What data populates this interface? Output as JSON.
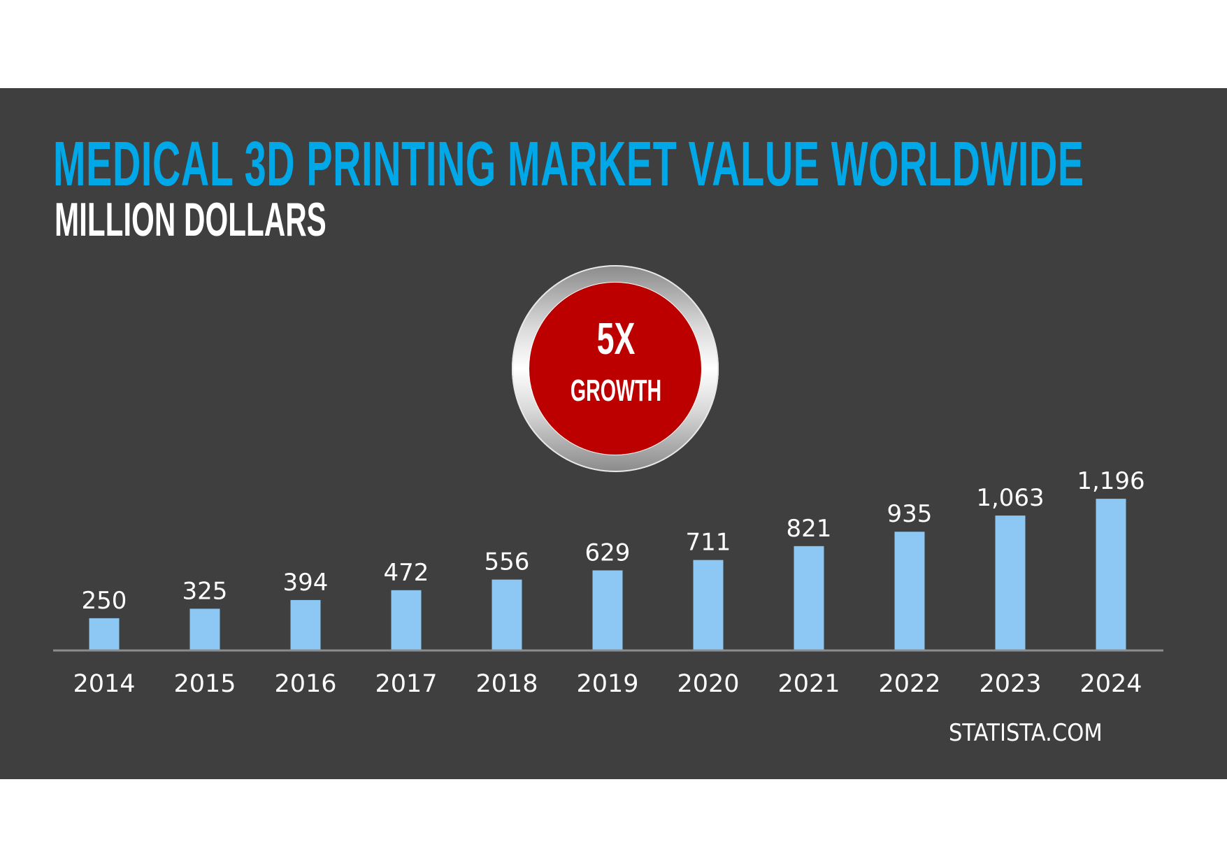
{
  "chart_data": {
    "type": "bar",
    "title": "MEDICAL 3D PRINTING MARKET VALUE WORLDWIDE",
    "subtitle": "MILLION DOLLARS",
    "categories": [
      "2014",
      "2015",
      "2016",
      "2017",
      "2018",
      "2019",
      "2020",
      "2021",
      "2022",
      "2023",
      "2024"
    ],
    "values": [
      250,
      325,
      394,
      472,
      556,
      629,
      711,
      821,
      935,
      1063,
      1196
    ],
    "value_labels": [
      "250",
      "325",
      "394",
      "472",
      "556",
      "629",
      "711",
      "821",
      "935",
      "1,063",
      "1,196"
    ],
    "xlabel": "",
    "ylabel": "",
    "grid": false,
    "bar_color": "#8cc8f3",
    "title_color": "#00a8e8",
    "background_color": "#3f3f3f"
  },
  "badge": {
    "big": "5X",
    "small": "GROWTH",
    "color": "#bc0000"
  },
  "source": "STATISTA.COM"
}
